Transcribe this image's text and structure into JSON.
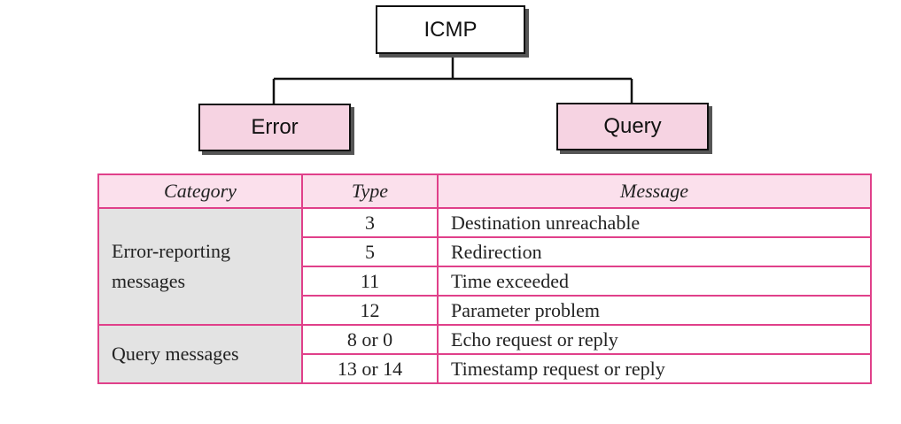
{
  "diagram": {
    "root": {
      "label": "ICMP"
    },
    "children": [
      {
        "label": "Error"
      },
      {
        "label": "Query"
      }
    ]
  },
  "table": {
    "headers": [
      "Category",
      "Type",
      "Message"
    ],
    "groups": [
      {
        "category": "Error-reporting messages",
        "rows": [
          {
            "type": "3",
            "message": "Destination unreachable"
          },
          {
            "type": "5",
            "message": "Redirection"
          },
          {
            "type": "11",
            "message": "Time exceeded"
          },
          {
            "type": "12",
            "message": "Parameter problem"
          }
        ]
      },
      {
        "category": "Query messages",
        "rows": [
          {
            "type": "8 or 0",
            "message": "Echo request or reply"
          },
          {
            "type": "13 or 14",
            "message": "Timestamp request or reply"
          }
        ]
      }
    ]
  },
  "colors": {
    "node_fill": "#f6d3e2",
    "table_border": "#e0408a",
    "header_fill": "#fbe0ec",
    "category_fill": "#e3e3e3"
  }
}
